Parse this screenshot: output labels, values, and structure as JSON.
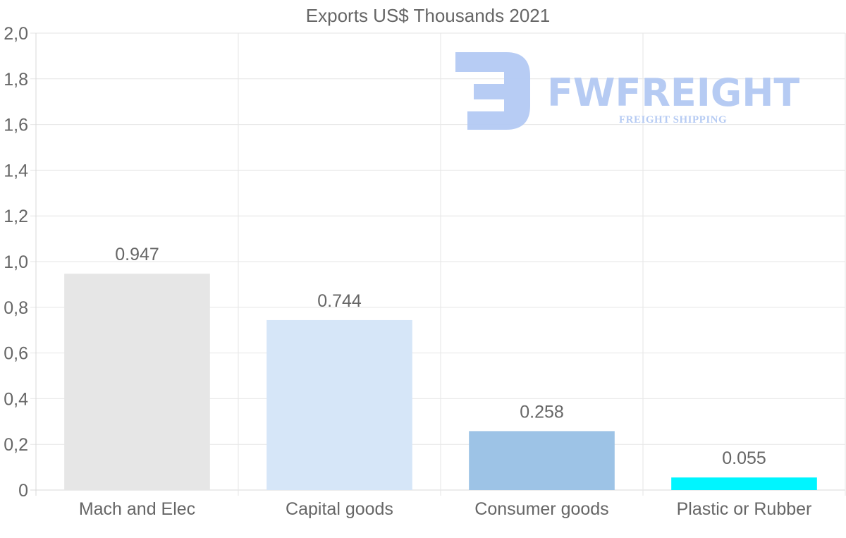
{
  "chart_data": {
    "type": "bar",
    "title": "Exports US$ Thousands 2021",
    "categories": [
      "Mach and Elec",
      "Capital goods",
      "Consumer goods",
      "Plastic or Rubber"
    ],
    "values": [
      0.947,
      0.744,
      0.258,
      0.055
    ],
    "value_labels": [
      "0.947",
      "0.744",
      "0.258",
      "0.055"
    ],
    "bar_colors": [
      "#e6e6e6",
      "#d6e6f8",
      "#9dc3e6",
      "#00f5ff"
    ],
    "ylim": [
      0,
      2.0
    ],
    "yticks": [
      0,
      0.2,
      0.4,
      0.6,
      0.8,
      1.0,
      1.2,
      1.4,
      1.6,
      1.8,
      2.0
    ],
    "ytick_labels": [
      "0",
      "0,2",
      "0,4",
      "0,6",
      "0,8",
      "1,0",
      "1,2",
      "1,4",
      "1,6",
      "1,8",
      "2,0"
    ],
    "xlabel": "",
    "ylabel": "",
    "grid": true
  },
  "watermark": {
    "name": "FWFREIGHT",
    "tagline": "FREIGHT SHIPPING",
    "color": "#b3c9f3"
  }
}
